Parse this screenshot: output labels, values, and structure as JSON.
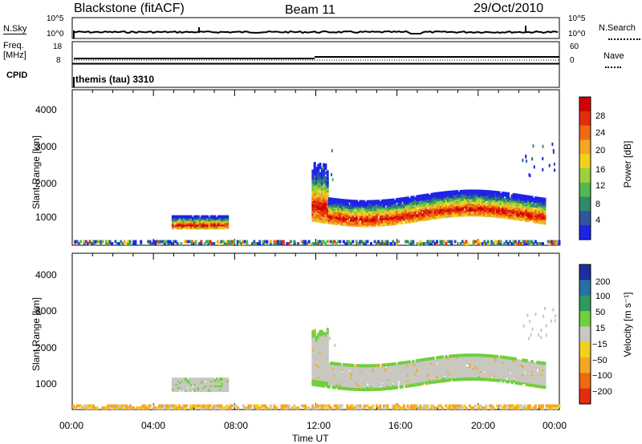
{
  "header": {
    "station": "Blackstone (fitACF)",
    "beam": "Beam 11",
    "date": "29/Oct/2010"
  },
  "left_labels": {
    "nsky": "N.Sky",
    "freq_a": "Freq.",
    "freq_b": "[MHz]",
    "cpid": "CPID"
  },
  "right_labels": {
    "nsearch": "N.Search",
    "nave": "Nave"
  },
  "noise_panel": {
    "left_ticks": [
      "10^5",
      "10^0"
    ],
    "right_ticks": [
      "10^5",
      "10^0"
    ]
  },
  "freq_panel": {
    "left_ticks": [
      "18",
      "8"
    ],
    "right_ticks": [
      "60",
      "0"
    ]
  },
  "cpid_panel": {
    "text": "themis (tau) 3310"
  },
  "x_axis": {
    "label": "Time UT",
    "ticks": [
      "00:00",
      "04:00",
      "08:00",
      "12:00",
      "16:00",
      "20:00",
      "00:00"
    ]
  },
  "chart_data": [
    {
      "type": "heatmap",
      "title": "",
      "xlabel": "Time UT",
      "ylabel": "Slant Range [km]",
      "xlim_hours": [
        0,
        24
      ],
      "ylim": [
        180,
        4600
      ],
      "y_ticks": [
        "1000",
        "2000",
        "3000",
        "4000"
      ],
      "colorbar": {
        "label": "Power [dB]",
        "ticks": [
          "4",
          "8",
          "12",
          "16",
          "20",
          "24",
          "28"
        ],
        "colors": [
          "#1f23e8",
          "#2f55a0",
          "#2e8b6a",
          "#52b852",
          "#9bd23c",
          "#f0d21c",
          "#f5a623",
          "#ee6a12",
          "#e42c0c",
          "#d20000"
        ]
      },
      "regions": [
        {
          "name": "ground-scatter-band",
          "t": [
            0.0,
            24.0
          ],
          "range": [
            200,
            320
          ]
        },
        {
          "name": "morning-patch",
          "t": [
            4.9,
            7.6
          ],
          "range": [
            650,
            1000
          ]
        },
        {
          "name": "afternoon-echoes",
          "t": [
            11.8,
            23.3
          ],
          "range": [
            800,
            1700
          ]
        }
      ]
    },
    {
      "type": "heatmap",
      "title": "",
      "xlabel": "Time UT",
      "ylabel": "Slant Range [km]",
      "xlim_hours": [
        0,
        24
      ],
      "ylim": [
        180,
        4600
      ],
      "y_ticks": [
        "1000",
        "2000",
        "3000",
        "4000"
      ],
      "colorbar": {
        "label": "Velocity [m s⁻¹]",
        "ticks": [
          "200",
          "100",
          "50",
          "15",
          "−15",
          "−50",
          "−100",
          "−200"
        ],
        "colors": [
          "#1c2fa0",
          "#2a6fa6",
          "#2f9a60",
          "#6fcf3c",
          "#c8c8c0",
          "#f0d21c",
          "#f5a623",
          "#ee6a12",
          "#e42c0c"
        ]
      },
      "regions": [
        {
          "name": "ground-scatter-band",
          "t": [
            0.0,
            24.0
          ],
          "range": [
            200,
            320
          ]
        },
        {
          "name": "morning-patch",
          "t": [
            4.9,
            7.6
          ],
          "range": [
            700,
            1050
          ]
        },
        {
          "name": "afternoon-echoes",
          "t": [
            11.8,
            23.3
          ],
          "range": [
            850,
            1750
          ]
        }
      ]
    }
  ],
  "colors": {
    "axis": "#000000",
    "background": "#ffffff",
    "ground_scatter_grey": "#b4b4b4"
  }
}
